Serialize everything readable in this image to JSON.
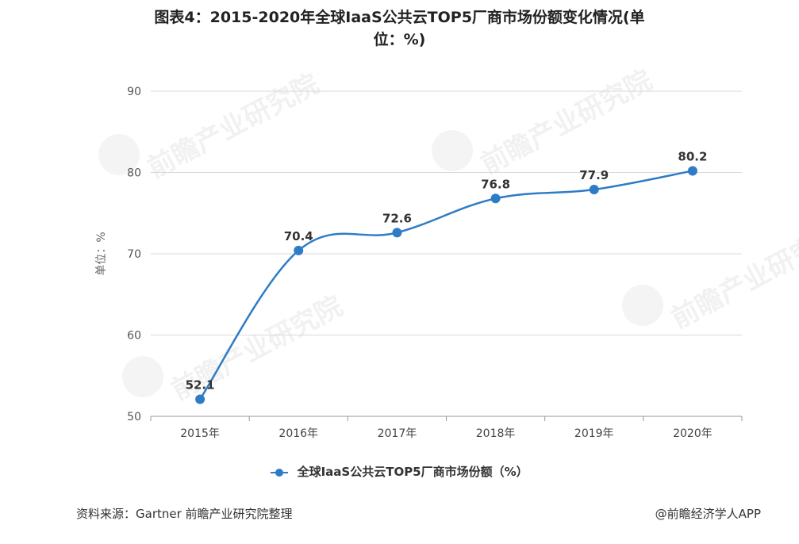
{
  "title_line1": "图表4：2015-2020年全球IaaS公共云TOP5厂商市场份额变化情况(单",
  "title_line2": "位：%)",
  "source": "资料来源：Gartner 前瞻产业研究院整理",
  "brand": "@前瞻经济学人APP",
  "watermark": "前瞻产业研究院",
  "chart_data": {
    "type": "line",
    "categories": [
      "2015年",
      "2016年",
      "2017年",
      "2018年",
      "2019年",
      "2020年"
    ],
    "series": [
      {
        "name": "全球IaaS公共云TOP5厂商市场份额（%）",
        "values": [
          52.1,
          70.4,
          72.6,
          76.8,
          77.9,
          80.2
        ]
      }
    ],
    "data_labels": [
      "52.1",
      "70.4",
      "72.6",
      "76.8",
      "77.9",
      "80.2"
    ],
    "ylabel": "单位：%",
    "ylim": [
      50,
      90
    ],
    "yticks": [
      50,
      60,
      70,
      80,
      90
    ],
    "grid": true,
    "legend_position": "bottom",
    "color": "#2e7cc5"
  }
}
